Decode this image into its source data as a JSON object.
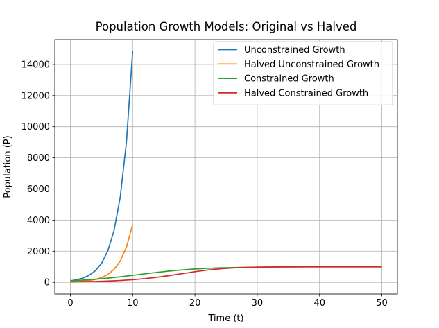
{
  "chart_data": {
    "type": "line",
    "title": "Population Growth Models: Original vs Halved",
    "xlabel": "Time (t)",
    "ylabel": "Population (P)",
    "xlim": [
      -2.5,
      52.5
    ],
    "ylim": [
      -750,
      15600
    ],
    "xticks": [
      0,
      10,
      20,
      30,
      40,
      50
    ],
    "yticks": [
      0,
      2000,
      4000,
      6000,
      8000,
      10000,
      12000,
      14000
    ],
    "grid": true,
    "legend_position": "upper right",
    "series": [
      {
        "name": "Unconstrained Growth",
        "color": "#1f77b4",
        "x": [
          0,
          1,
          2,
          3,
          4,
          5,
          6,
          7,
          8,
          9,
          10
        ],
        "y": [
          100,
          165,
          272,
          448,
          739,
          1218,
          2009,
          3312,
          5460,
          9002,
          14841
        ]
      },
      {
        "name": "Halved Unconstrained Growth",
        "color": "#ff7f0e",
        "x": [
          0,
          1,
          2,
          3,
          4,
          5,
          6,
          7,
          8,
          9,
          10
        ],
        "y": [
          25,
          41,
          68,
          112,
          185,
          305,
          502,
          828,
          1365,
          2251,
          3710
        ]
      },
      {
        "name": "Constrained Growth",
        "color": "#2ca02c",
        "x": [
          0,
          2,
          4,
          6,
          8,
          10,
          12,
          14,
          16,
          18,
          20,
          22,
          24,
          26,
          28,
          30,
          32,
          34,
          36,
          38,
          40,
          42,
          44,
          46,
          48,
          50
        ],
        "y": [
          100,
          142,
          198,
          269,
          354,
          450,
          550,
          646,
          731,
          802,
          858,
          900,
          931,
          952,
          967,
          978,
          985,
          990,
          993,
          995,
          997,
          998,
          999,
          999,
          999,
          1000
        ]
      },
      {
        "name": "Halved Constrained Growth",
        "color": "#d62728",
        "x": [
          0,
          2,
          4,
          6,
          8,
          10,
          12,
          14,
          16,
          18,
          20,
          22,
          24,
          26,
          28,
          30,
          32,
          34,
          36,
          38,
          40,
          42,
          44,
          46,
          48,
          50
        ],
        "y": [
          25,
          37,
          55,
          80,
          117,
          168,
          239,
          330,
          442,
          563,
          684,
          789,
          869,
          924,
          957,
          976,
          987,
          993,
          996,
          998,
          999,
          999,
          1000,
          1000,
          1000,
          1000
        ]
      }
    ]
  }
}
